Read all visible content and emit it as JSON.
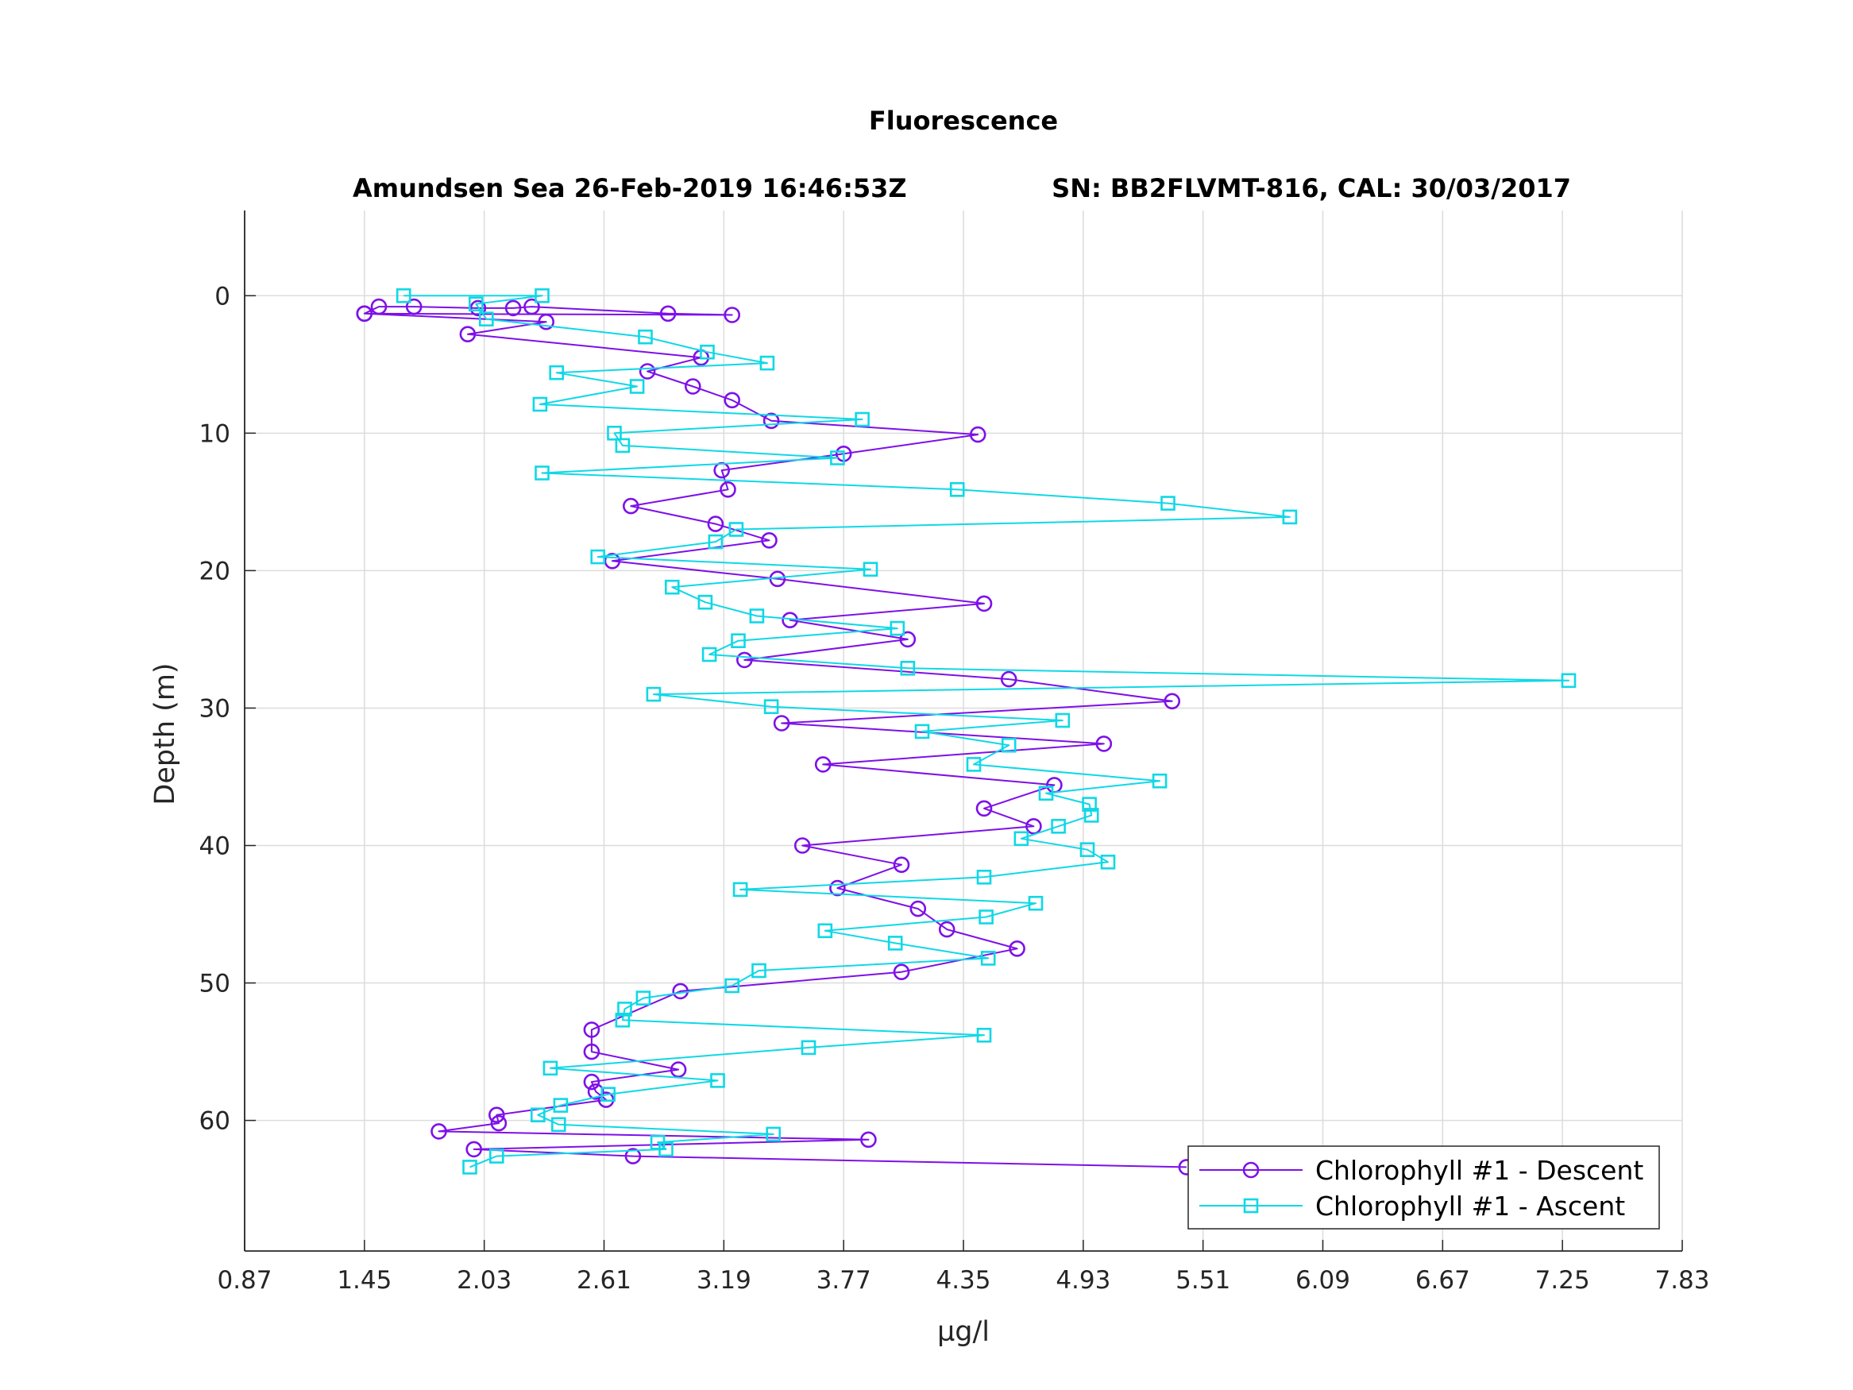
{
  "chart_data": {
    "type": "line",
    "title": "Fluorescence",
    "subtitle_left": "Amundsen Sea 26-Feb-2019 16:46:53Z",
    "subtitle_right": "SN: BB2FLVMT-816, CAL: 30/03/2017",
    "xlabel": "µg/l",
    "ylabel": "Depth (m)",
    "xlim": [
      0.87,
      7.83
    ],
    "ylim": [
      69.5,
      -6.2
    ],
    "y_reversed": true,
    "xticks": [
      "0.87",
      "1.45",
      "2.03",
      "2.61",
      "3.19",
      "3.77",
      "4.35",
      "4.93",
      "5.51",
      "6.09",
      "6.67",
      "7.25",
      "7.83"
    ],
    "yticks": [
      "0",
      "10",
      "20",
      "30",
      "40",
      "50",
      "60"
    ],
    "grid": true,
    "legend_position": "bottom-right",
    "series": [
      {
        "name": "Chlorophyll #1 - Descent",
        "color": "#7e10e8",
        "marker": "circle",
        "points": [
          [
            1.45,
            1.3
          ],
          [
            1.52,
            0.8
          ],
          [
            1.69,
            0.8
          ],
          [
            2.0,
            0.9
          ],
          [
            2.17,
            0.9
          ],
          [
            2.26,
            0.8
          ],
          [
            2.92,
            1.3
          ],
          [
            3.23,
            1.4
          ],
          [
            1.45,
            1.3
          ],
          [
            2.33,
            1.9
          ],
          [
            1.95,
            2.8
          ],
          [
            3.08,
            4.5
          ],
          [
            2.82,
            5.5
          ],
          [
            3.04,
            6.6
          ],
          [
            3.23,
            7.6
          ],
          [
            3.42,
            9.1
          ],
          [
            4.42,
            10.1
          ],
          [
            3.77,
            11.5
          ],
          [
            3.18,
            12.7
          ],
          [
            3.21,
            14.1
          ],
          [
            2.74,
            15.3
          ],
          [
            3.15,
            16.6
          ],
          [
            3.41,
            17.8
          ],
          [
            2.65,
            19.3
          ],
          [
            3.45,
            20.6
          ],
          [
            4.45,
            22.4
          ],
          [
            3.51,
            23.6
          ],
          [
            4.08,
            25.0
          ],
          [
            3.29,
            26.5
          ],
          [
            4.57,
            27.9
          ],
          [
            5.36,
            29.5
          ],
          [
            3.47,
            31.1
          ],
          [
            5.03,
            32.6
          ],
          [
            3.67,
            34.1
          ],
          [
            4.79,
            35.6
          ],
          [
            4.45,
            37.3
          ],
          [
            4.69,
            38.6
          ],
          [
            3.57,
            40.0
          ],
          [
            4.05,
            41.4
          ],
          [
            3.74,
            43.1
          ],
          [
            4.13,
            44.6
          ],
          [
            4.27,
            46.1
          ],
          [
            4.61,
            47.5
          ],
          [
            4.05,
            49.2
          ],
          [
            2.98,
            50.6
          ],
          [
            2.55,
            53.4
          ],
          [
            2.55,
            55.0
          ],
          [
            2.97,
            56.3
          ],
          [
            2.55,
            57.2
          ],
          [
            2.57,
            57.9
          ],
          [
            2.62,
            58.5
          ],
          [
            2.09,
            59.6
          ],
          [
            2.1,
            60.2
          ],
          [
            1.81,
            60.8
          ],
          [
            3.89,
            61.4
          ],
          [
            1.98,
            62.1
          ],
          [
            2.75,
            62.6
          ],
          [
            5.43,
            63.4
          ]
        ]
      },
      {
        "name": "Chlorophyll #1 - Ascent",
        "color": "#0fd8e6",
        "marker": "square",
        "points": [
          [
            1.96,
            63.4
          ],
          [
            2.09,
            62.6
          ],
          [
            2.91,
            62.1
          ],
          [
            2.87,
            61.6
          ],
          [
            3.43,
            61.0
          ],
          [
            2.39,
            60.3
          ],
          [
            2.29,
            59.6
          ],
          [
            2.4,
            58.9
          ],
          [
            2.63,
            58.1
          ],
          [
            3.16,
            57.1
          ],
          [
            2.35,
            56.2
          ],
          [
            3.6,
            54.7
          ],
          [
            4.45,
            53.8
          ],
          [
            2.7,
            52.7
          ],
          [
            2.71,
            51.9
          ],
          [
            2.8,
            51.1
          ],
          [
            3.23,
            50.2
          ],
          [
            3.36,
            49.1
          ],
          [
            4.47,
            48.2
          ],
          [
            4.02,
            47.1
          ],
          [
            3.68,
            46.2
          ],
          [
            4.46,
            45.2
          ],
          [
            4.7,
            44.2
          ],
          [
            3.27,
            43.2
          ],
          [
            4.45,
            42.3
          ],
          [
            5.05,
            41.2
          ],
          [
            4.95,
            40.3
          ],
          [
            4.63,
            39.5
          ],
          [
            4.81,
            38.6
          ],
          [
            4.97,
            37.8
          ],
          [
            4.96,
            37.0
          ],
          [
            4.75,
            36.2
          ],
          [
            5.3,
            35.3
          ],
          [
            4.4,
            34.1
          ],
          [
            4.57,
            32.7
          ],
          [
            4.15,
            31.7
          ],
          [
            4.83,
            30.9
          ],
          [
            3.42,
            29.9
          ],
          [
            2.85,
            29.0
          ],
          [
            7.28,
            28.0
          ],
          [
            4.08,
            27.1
          ],
          [
            3.12,
            26.1
          ],
          [
            3.26,
            25.1
          ],
          [
            4.03,
            24.2
          ],
          [
            3.35,
            23.3
          ],
          [
            3.1,
            22.3
          ],
          [
            2.94,
            21.2
          ],
          [
            3.9,
            19.9
          ],
          [
            2.58,
            19.0
          ],
          [
            3.15,
            17.9
          ],
          [
            3.25,
            17.0
          ],
          [
            5.93,
            16.1
          ],
          [
            5.34,
            15.1
          ],
          [
            4.32,
            14.1
          ],
          [
            2.31,
            12.9
          ],
          [
            3.74,
            11.8
          ],
          [
            2.7,
            10.9
          ],
          [
            2.66,
            10.0
          ],
          [
            3.86,
            9.0
          ],
          [
            2.3,
            7.9
          ],
          [
            2.77,
            6.6
          ],
          [
            2.38,
            5.6
          ],
          [
            3.4,
            4.9
          ],
          [
            3.11,
            4.1
          ],
          [
            2.81,
            3.0
          ],
          [
            2.04,
            1.7
          ],
          [
            1.99,
            0.6
          ],
          [
            2.31,
            0.0
          ],
          [
            1.64,
            0.0
          ]
        ]
      }
    ]
  }
}
